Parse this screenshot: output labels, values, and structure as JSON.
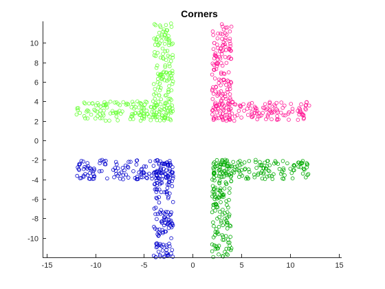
{
  "chart_data": {
    "type": "scatter",
    "title": "Corners",
    "xlabel": "",
    "ylabel": "",
    "xlim": [
      -15.4,
      15.3
    ],
    "ylim": [
      -12,
      12.2
    ],
    "xticks": [
      -15,
      -10,
      -5,
      0,
      5,
      10,
      15
    ],
    "yticks": [
      -10,
      -8,
      -6,
      -4,
      -2,
      0,
      2,
      4,
      6,
      8,
      10
    ],
    "grid": false,
    "legend": "none",
    "marker": "open-circle",
    "series": [
      {
        "color": "#66ff33",
        "clusters": [
          {
            "x_range": [
              -12,
              -2
            ],
            "y_range": [
              2,
              4
            ],
            "count": 130
          },
          {
            "x_range": [
              -4,
              -2
            ],
            "y_range": [
              2,
              12
            ],
            "count": 150
          }
        ]
      },
      {
        "color": "#ff1493",
        "clusters": [
          {
            "x_range": [
              2,
              4
            ],
            "y_range": [
              2,
              12
            ],
            "count": 150
          },
          {
            "x_range": [
              2,
              12
            ],
            "y_range": [
              2,
              4
            ],
            "count": 130
          }
        ]
      },
      {
        "color": "#0000cc",
        "clusters": [
          {
            "x_range": [
              -12,
              -2
            ],
            "y_range": [
              -4,
              -2
            ],
            "count": 130
          },
          {
            "x_range": [
              -4,
              -2
            ],
            "y_range": [
              -12,
              -2
            ],
            "count": 150
          }
        ]
      },
      {
        "color": "#00aa00",
        "clusters": [
          {
            "x_range": [
              2,
              12
            ],
            "y_range": [
              -4,
              -2
            ],
            "count": 130
          },
          {
            "x_range": [
              2,
              4
            ],
            "y_range": [
              -12,
              -2
            ],
            "count": 150
          }
        ]
      }
    ]
  }
}
